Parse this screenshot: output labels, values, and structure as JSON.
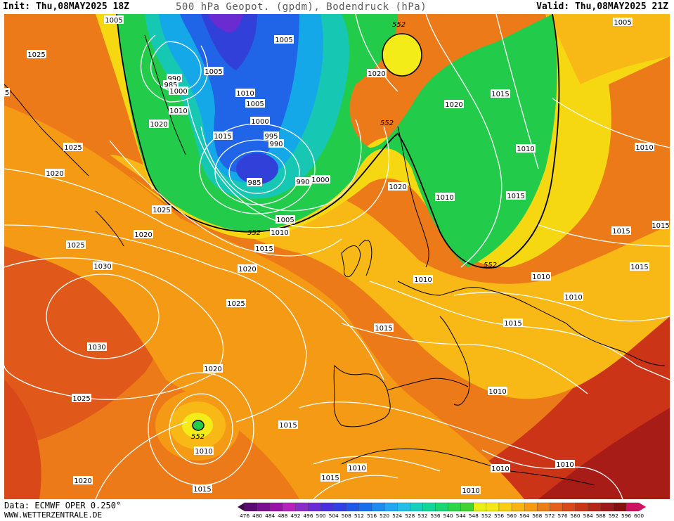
{
  "header": {
    "init": "Init: Thu,08MAY2025 18Z",
    "title": "500 hPa Geopot. (gpdm), Bodendruck (hPa)",
    "valid": "Valid: Thu,08MAY2025 21Z"
  },
  "footer": {
    "data_source": "Data: ECMWF OPER 0.250°",
    "website": "WWW.WETTERZENTRALE.DE"
  },
  "legend": {
    "values": [
      "476",
      "480",
      "484",
      "488",
      "492",
      "496",
      "500",
      "504",
      "508",
      "512",
      "516",
      "520",
      "524",
      "528",
      "532",
      "536",
      "540",
      "544",
      "548",
      "552",
      "556",
      "560",
      "564",
      "568",
      "572",
      "576",
      "580",
      "584",
      "588",
      "592",
      "596",
      "600"
    ],
    "colors": [
      "#3c0a4a",
      "#5a0a70",
      "#7a1090",
      "#9a10a8",
      "#b820c0",
      "#8a2ccc",
      "#6a2cd8",
      "#4830e0",
      "#3040e8",
      "#2058ec",
      "#1670f0",
      "#1a8cf4",
      "#20a8f4",
      "#22c0e8",
      "#18d0c0",
      "#10d898",
      "#18d870",
      "#28d848",
      "#40d430",
      "#e8f018",
      "#f4e818",
      "#f8d010",
      "#f8b410",
      "#f89a10",
      "#f07c14",
      "#e86018",
      "#dc4818",
      "#cc3418",
      "#b82418",
      "#a01818",
      "#8a1010",
      "#d01060"
    ]
  },
  "map_colors": {
    "ocean_warm": "#e8641c",
    "orange_mid": "#f59a14",
    "orange_light": "#f8b816",
    "yellow": "#f6d812",
    "yellow_bright": "#f4ec18",
    "green": "#22cc4a",
    "green_light": "#3ad860",
    "teal": "#16c8b4",
    "cyan": "#14a8e8",
    "blue": "#2064e8",
    "deep_blue": "#3040d8",
    "purple": "#6a2cd0",
    "red": "#cc3418",
    "deep_red": "#a81c18",
    "contour": "#ffffff",
    "coast": "#000000"
  },
  "pressure_labels": [
    {
      "text": "1005"
    },
    {
      "text": "1025"
    },
    {
      "text": "5"
    },
    {
      "text": "1005"
    },
    {
      "text": "990"
    },
    {
      "text": "985"
    },
    {
      "text": "1000"
    },
    {
      "text": "1010"
    },
    {
      "text": "1020"
    },
    {
      "text": "1025"
    },
    {
      "text": "1020"
    },
    {
      "text": "1025"
    },
    {
      "text": "1020"
    },
    {
      "text": "1025"
    },
    {
      "text": "1030"
    },
    {
      "text": "1025"
    },
    {
      "text": "1030"
    },
    {
      "text": "1025"
    },
    {
      "text": "1020"
    },
    {
      "text": "1020"
    },
    {
      "text": "1015"
    },
    {
      "text": "1010"
    },
    {
      "text": "1005"
    },
    {
      "text": "1015"
    },
    {
      "text": "1010"
    },
    {
      "text": "1005"
    },
    {
      "text": "1000"
    },
    {
      "text": "995"
    },
    {
      "text": "990"
    },
    {
      "text": "985"
    },
    {
      "text": "990"
    },
    {
      "text": "1000"
    },
    {
      "text": "1005"
    },
    {
      "text": "1010"
    },
    {
      "text": "1015"
    },
    {
      "text": "1020"
    },
    {
      "text": "1020"
    },
    {
      "text": "1015"
    },
    {
      "text": "1020"
    },
    {
      "text": "1020"
    },
    {
      "text": "1010"
    },
    {
      "text": "1015"
    },
    {
      "text": "1005"
    },
    {
      "text": "1010"
    },
    {
      "text": "1015"
    },
    {
      "text": "1015"
    },
    {
      "text": "1015"
    },
    {
      "text": "1010"
    },
    {
      "text": "1010"
    },
    {
      "text": "1015"
    },
    {
      "text": "1010"
    },
    {
      "text": "1010"
    },
    {
      "text": "1015"
    },
    {
      "text": "1010"
    },
    {
      "text": "1010"
    },
    {
      "text": "1010"
    },
    {
      "text": "1010"
    },
    {
      "text": "1010"
    },
    {
      "text": "1015"
    },
    {
      "text": "1015"
    },
    {
      "text": "1020"
    },
    {
      "text": "1015"
    },
    {
      "text": "1010"
    },
    {
      "text": "1020"
    },
    {
      "text": "1015"
    },
    {
      "text": "1010"
    },
    {
      "text": "1010"
    },
    {
      "text": "1020"
    },
    {
      "text": "1015"
    },
    {
      "text": "1010"
    }
  ],
  "geopot_labels": [
    {
      "text": "552"
    },
    {
      "text": "552"
    },
    {
      "text": "552"
    },
    {
      "text": "552"
    },
    {
      "text": "552"
    }
  ]
}
